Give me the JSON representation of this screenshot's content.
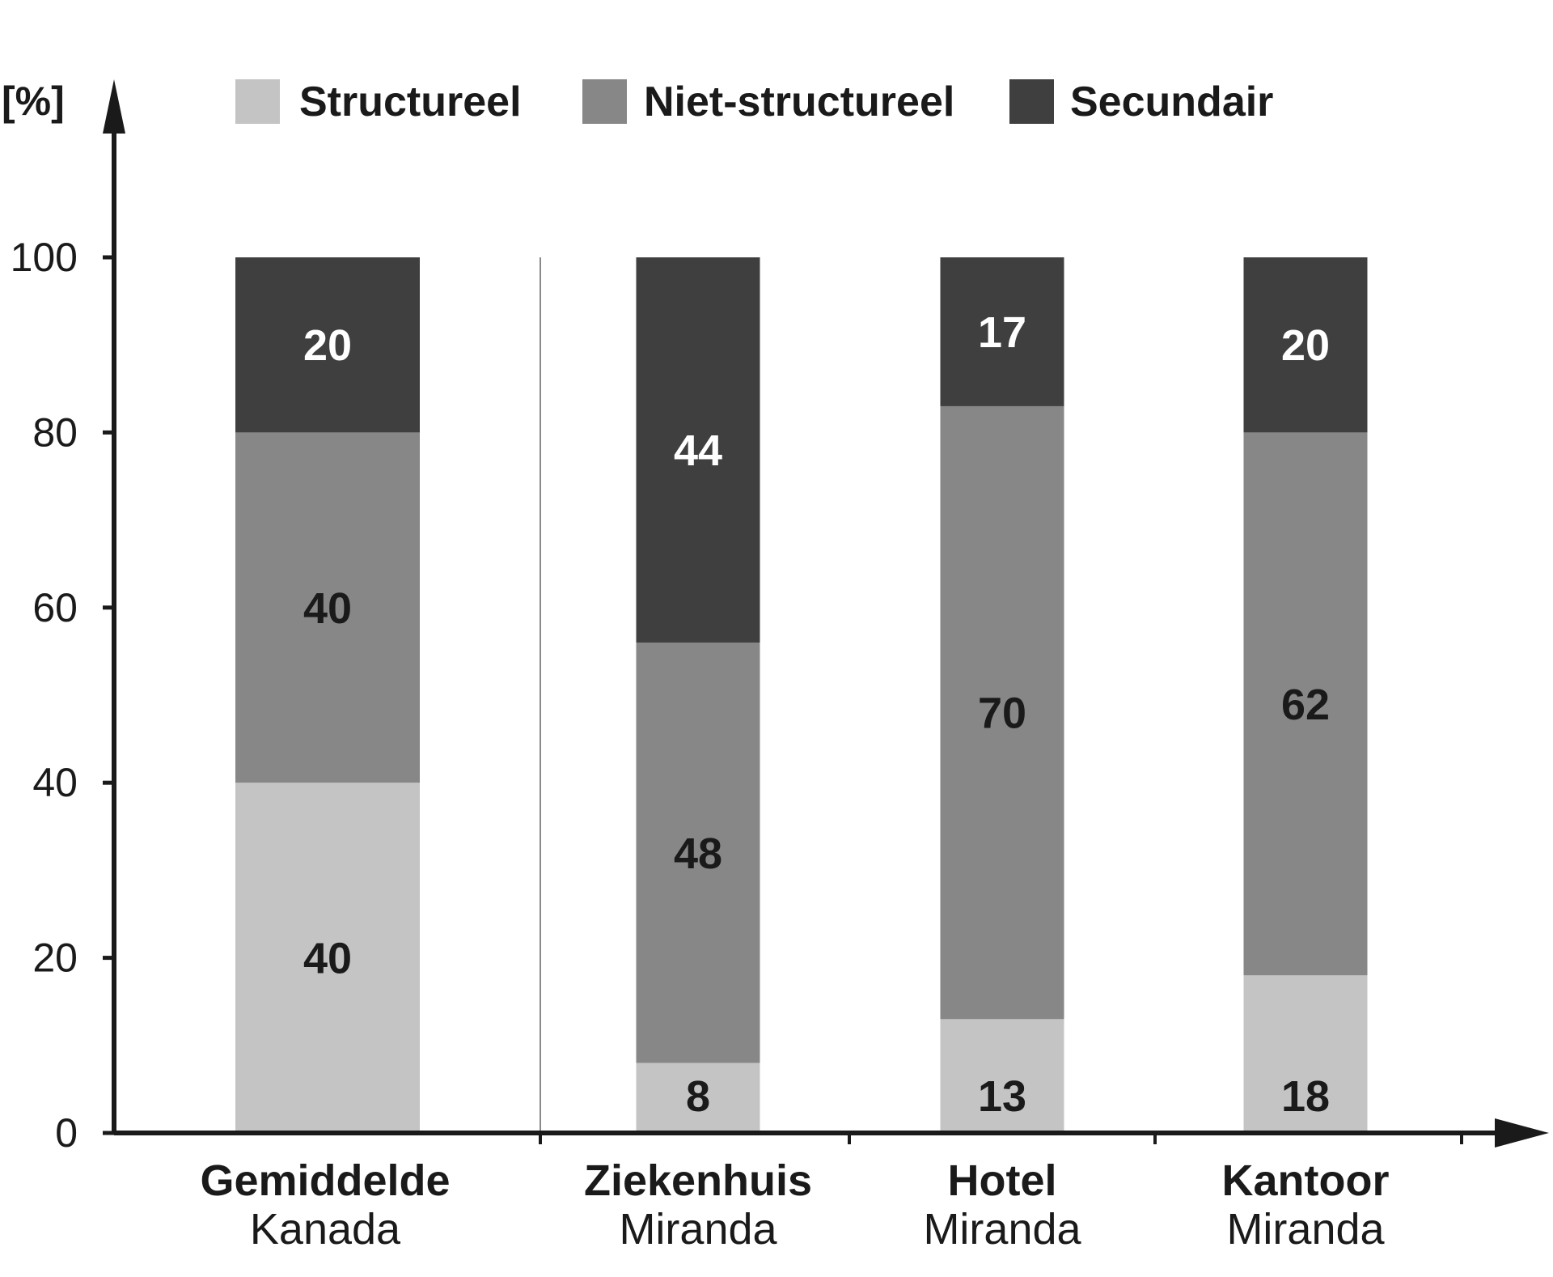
{
  "chart_data": {
    "type": "bar",
    "stacked": true,
    "ylabel": "[%]",
    "ylim": [
      0,
      100
    ],
    "yticks": [
      "0",
      "20",
      "40",
      "60",
      "80",
      "100"
    ],
    "categories": [
      {
        "line1": "Gemiddelde",
        "line2": "Kanada"
      },
      {
        "line1": "Ziekenhuis",
        "line2": "Miranda"
      },
      {
        "line1": "Hotel",
        "line2": "Miranda"
      },
      {
        "line1": "Kantoor",
        "line2": "Miranda"
      }
    ],
    "series": [
      {
        "name": "Structureel",
        "color": "#c4c4c4",
        "label_color": "#1a1a1a",
        "values": [
          40,
          8,
          13,
          18
        ],
        "labels": [
          "40",
          "8",
          "13",
          "18"
        ]
      },
      {
        "name": "Niet-structureel",
        "color": "#878787",
        "label_color": "#1a1a1a",
        "values": [
          40,
          48,
          70,
          62
        ],
        "labels": [
          "40",
          "48",
          "70",
          "62"
        ]
      },
      {
        "name": "Secundair",
        "color": "#3f3f3f",
        "label_color": "#ffffff",
        "values": [
          20,
          44,
          17,
          20
        ],
        "labels": [
          "20",
          "44",
          "17",
          "20"
        ]
      }
    ],
    "legend_position": "top",
    "grid": false,
    "separator_after_category": 0
  }
}
